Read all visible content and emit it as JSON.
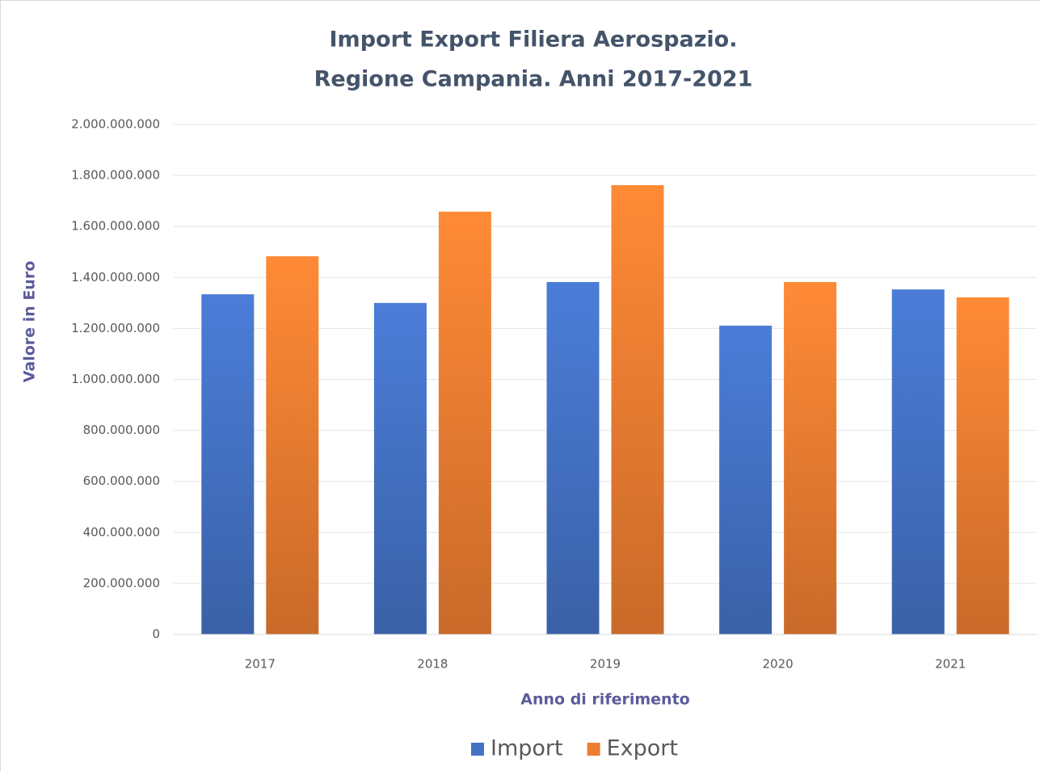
{
  "chart_data": {
    "type": "bar",
    "title": [
      "Import Export Filiera Aerospazio.",
      "Regione Campania. Anni 2017-2021"
    ],
    "x_label": "Anno di riferimento",
    "y_label": "Valore in Euro",
    "categories": [
      "2017",
      "2018",
      "2019",
      "2020",
      "2021"
    ],
    "series": [
      {
        "name": "Import",
        "color": "#4472c4",
        "values": [
          1334000000,
          1300000000,
          1382000000,
          1211000000,
          1353000000
        ]
      },
      {
        "name": "Export",
        "color": "#ed7d31",
        "values": [
          1483000000,
          1658000000,
          1762000000,
          1382000000,
          1322000000
        ]
      }
    ],
    "ylim": [
      0,
      2000000000
    ],
    "yticks": [
      0,
      {
        "value": 200000000,
        "label": "200.000.000"
      },
      {
        "value": 400000000,
        "label": "400.000.000"
      },
      {
        "value": 600000000,
        "label": "600.000.000"
      },
      {
        "value": 800000000,
        "label": "800.000.000"
      },
      {
        "value": 1000000000,
        "label": "1.000.000.000"
      },
      {
        "value": 1200000000,
        "label": "1.200.000.000"
      },
      {
        "value": 1400000000,
        "label": "1.400.000.000"
      },
      {
        "value": 1600000000,
        "label": "1.600.000.000"
      },
      {
        "value": 1800000000,
        "label": "1.800.000.000"
      },
      {
        "value": 2000000000,
        "label": "2.000.000.000"
      }
    ],
    "grid": true,
    "legend": "bottom"
  }
}
